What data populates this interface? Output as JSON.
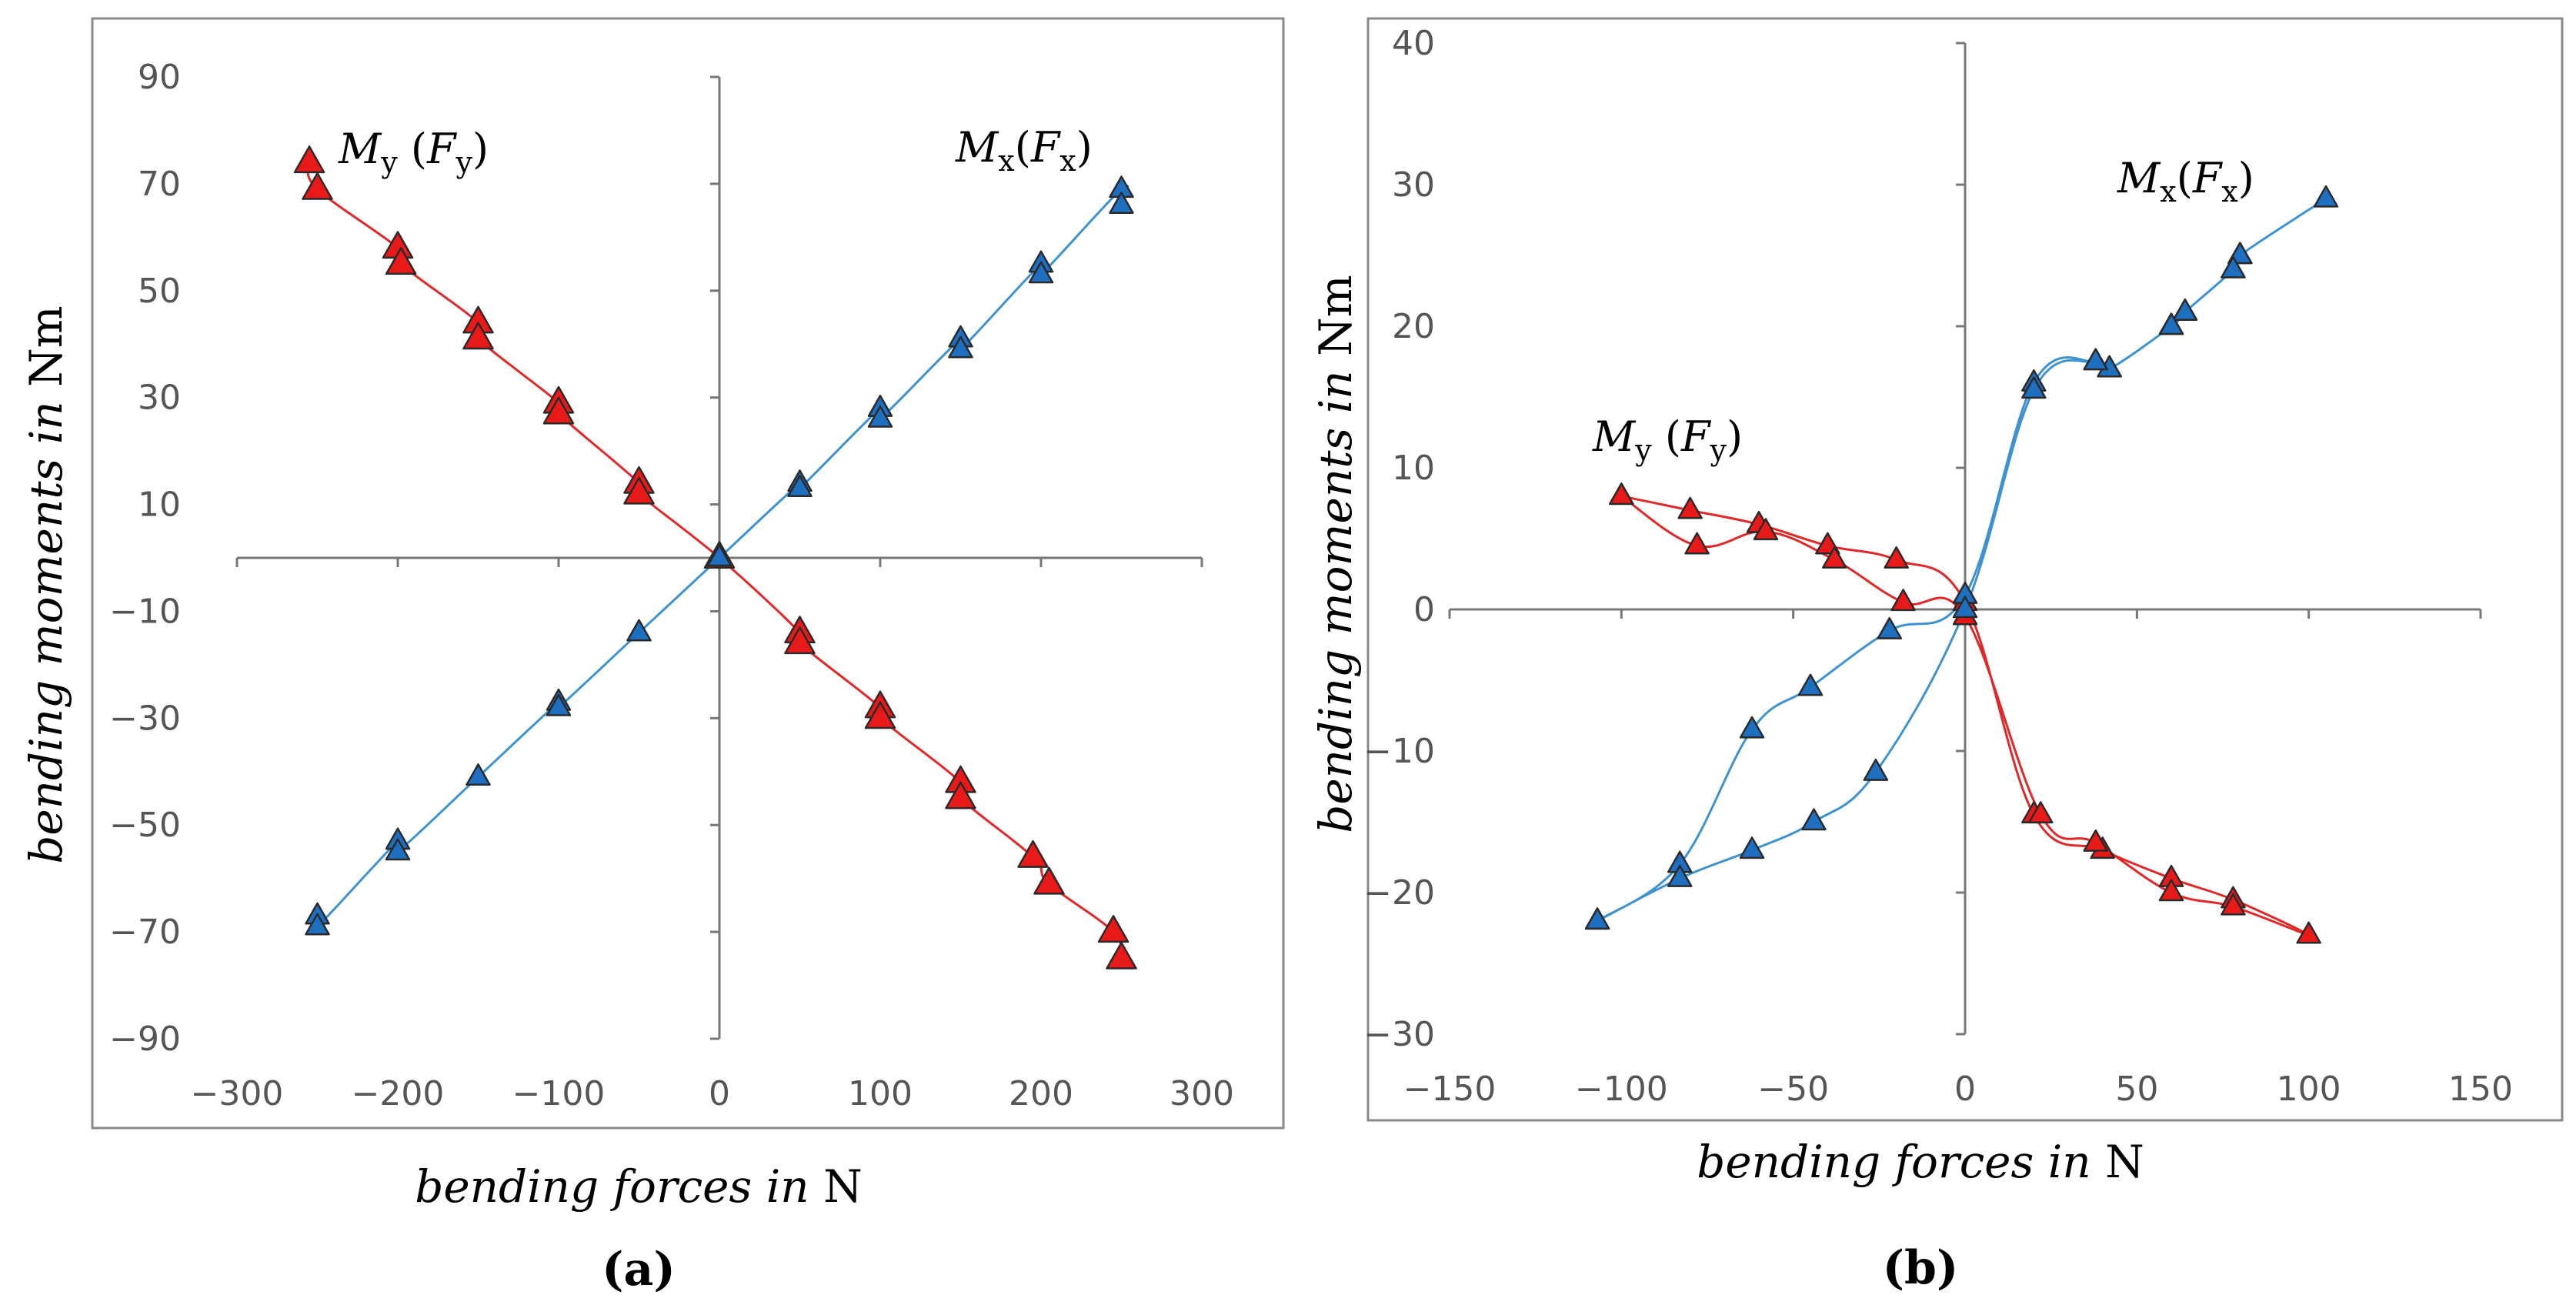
{
  "colors": {
    "red": "#e81919",
    "blue": "#1f6fc0",
    "red_line": "#e02828",
    "blue_line": "#3d92cf",
    "marker_stroke": "#2a2a2a"
  },
  "chart_data": [
    {
      "type": "line",
      "panel": "a",
      "caption": "(a)",
      "xlabel_italic": "bending forces in",
      "xlabel_unit": "N",
      "ylabel_italic": "bending moments in",
      "ylabel_unit": "Nm",
      "xlim": [
        -300,
        300
      ],
      "ylim": [
        -90,
        90
      ],
      "xticks": [
        -300,
        -200,
        -100,
        0,
        100,
        200,
        300
      ],
      "yticks": [
        -90,
        -70,
        -50,
        -30,
        -10,
        10,
        30,
        50,
        70,
        90
      ],
      "xtick_labels": [
        "−300",
        "−200",
        "−100",
        "0",
        "100",
        "200",
        "300"
      ],
      "ytick_labels": [
        "−90",
        "−70",
        "−50",
        "−30",
        "−10",
        "10",
        "30",
        "50",
        "70",
        "90"
      ],
      "series": [
        {
          "name": "My (Fy)",
          "label_main": "M",
          "label_sub": "y",
          "label_arg_open": " (",
          "label_arg": "F",
          "label_arg_sub": "y",
          "label_arg_close": ")",
          "color": "red",
          "marker_size": 38,
          "x": [
            -255,
            -250,
            -200,
            -198,
            -150,
            -150,
            -100,
            -100,
            -50,
            -50,
            0,
            50,
            50,
            100,
            100,
            150,
            150,
            195,
            205,
            245,
            250
          ],
          "y": [
            74,
            69,
            58,
            55,
            44,
            41,
            29,
            27,
            14,
            12,
            0,
            -14,
            -16,
            -28,
            -30,
            -42,
            -45,
            -56,
            -61,
            -70,
            -75
          ]
        },
        {
          "name": "Mx(Fx)",
          "label_main": "M",
          "label_sub": "x",
          "label_arg_open": "(",
          "label_arg": "F",
          "label_arg_sub": "x",
          "label_arg_close": ")",
          "color": "blue",
          "marker_size": 30,
          "x": [
            -250,
            -250,
            -200,
            -200,
            -150,
            -100,
            -100,
            -50,
            0,
            50,
            50,
            100,
            100,
            150,
            150,
            200,
            200,
            250,
            250
          ],
          "y": [
            -67,
            -69,
            -53,
            -55,
            -41,
            -27,
            -28,
            -14,
            0,
            14,
            13,
            28,
            26,
            41,
            39,
            55,
            53,
            69,
            66
          ]
        }
      ]
    },
    {
      "type": "line",
      "panel": "b",
      "caption": "(b)",
      "xlabel_italic": "bending forces in",
      "xlabel_unit": "N",
      "ylabel_italic": "bending moments in",
      "ylabel_unit": "Nm",
      "xlim": [
        -150,
        150
      ],
      "ylim": [
        -30,
        40
      ],
      "xticks": [
        -150,
        -100,
        -50,
        0,
        50,
        100,
        150
      ],
      "yticks": [
        -30,
        -20,
        -10,
        0,
        10,
        20,
        30,
        40
      ],
      "xtick_labels": [
        "−150",
        "−100",
        "−50",
        "0",
        "50",
        "100",
        "150"
      ],
      "ytick_labels": [
        "−30",
        "−20",
        "−10",
        "0",
        "10",
        "20",
        "30",
        "40"
      ],
      "series": [
        {
          "name": "My (Fy)",
          "label_main": "M",
          "label_sub": "y",
          "label_arg_open": " (",
          "label_arg": "F",
          "label_arg_sub": "y",
          "label_arg_close": ")",
          "color": "red",
          "marker_size": 30,
          "x": [
            -100,
            -80,
            -60,
            -40,
            -20,
            0,
            20,
            40,
            60,
            78,
            100,
            78,
            60,
            38,
            22,
            0,
            -18,
            -38,
            -58,
            -78,
            -100
          ],
          "y": [
            8,
            7,
            6,
            4.5,
            3.5,
            0.5,
            -14.5,
            -17,
            -19,
            -20.5,
            -23,
            -21,
            -20,
            -16.5,
            -14.5,
            -0.5,
            0.5,
            3.5,
            5.5,
            4.5,
            8
          ]
        },
        {
          "name": "Mx(Fx)",
          "label_main": "M",
          "label_sub": "x",
          "label_arg_open": "(",
          "label_arg": "F",
          "label_arg_sub": "x",
          "label_arg_close": ")",
          "color": "blue",
          "marker_size": 30,
          "x": [
            -107,
            -83,
            -62,
            -45,
            -22,
            0,
            20,
            38,
            42,
            60,
            64,
            78,
            80,
            105,
            80,
            78,
            64,
            60,
            42,
            38,
            20,
            0,
            -26,
            -44,
            -62,
            -83,
            -107
          ],
          "y": [
            -22,
            -18,
            -8.5,
            -5.5,
            -1.5,
            1,
            16,
            17.5,
            17,
            20,
            21,
            24,
            25,
            29,
            25,
            24,
            21,
            20,
            17,
            17.5,
            15.5,
            0,
            -11.5,
            -15,
            -17,
            -19,
            -22
          ]
        }
      ]
    }
  ]
}
